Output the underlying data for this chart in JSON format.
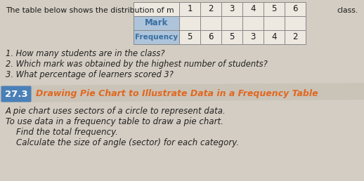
{
  "bg_color": "#d4cdc3",
  "top_text": "The table below shows the distribution of m",
  "top_text_right": "class.",
  "table_marks": [
    "1",
    "2",
    "3",
    "4",
    "5",
    "6"
  ],
  "table_freq": [
    "5",
    "6",
    "5",
    "3",
    "4",
    "2"
  ],
  "questions": [
    "1. How many students are in the class?",
    "2. Which mark was obtained by the highest number of students?",
    "3. What percentage of learners scored 3?"
  ],
  "section_number": "27.3",
  "section_number_bg": "#4a80b8",
  "section_title": "Drawing Pie Chart to Illustrate Data in a Frequency Table",
  "section_title_color": "#e06820",
  "banner_color": "#cac3b8",
  "body_lines": [
    "A pie chart uses sectors of a circle to represent data.",
    "To use data in a frequency table to draw a pie chart.",
    "    Find the total frequency.",
    "    Calculate the size of angle (sector) for each category."
  ],
  "body_text_color": "#222222",
  "mark_header_bg": "#adc4db",
  "freq_header_bg": "#adc4db",
  "cell_bg": "#ede8e0",
  "header_label_color": "#3a6fa0",
  "table_border_color": "#888888"
}
